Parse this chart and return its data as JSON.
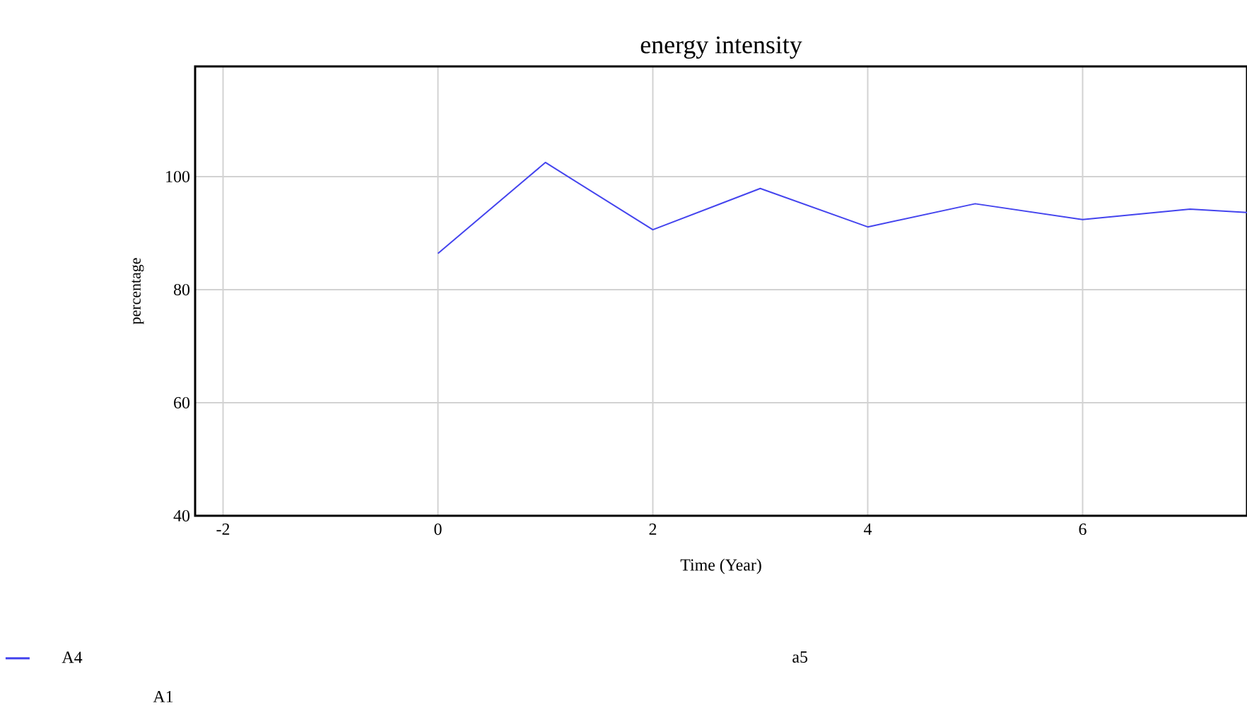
{
  "chart_data": {
    "type": "line",
    "title": "energy intensity",
    "xlabel": "Time (Year)",
    "ylabel": "percentage",
    "x": [
      0,
      1,
      2,
      3,
      4,
      5,
      6,
      7,
      7.53
    ],
    "series": [
      {
        "name": "A4",
        "color": "#4444ee",
        "values": [
          86.4,
          102.5,
          90.6,
          97.9,
          91.1,
          95.2,
          92.4,
          94.25,
          93.65
        ]
      }
    ],
    "xlim": [
      -2.26,
      7.53
    ],
    "ylim": [
      40,
      119.5
    ],
    "xticks": [
      -2,
      0,
      2,
      4,
      6
    ],
    "yticks": [
      40,
      60,
      80,
      100
    ],
    "grid": true,
    "legend": "bottom left",
    "annotations": [
      "a5",
      "A1"
    ]
  }
}
